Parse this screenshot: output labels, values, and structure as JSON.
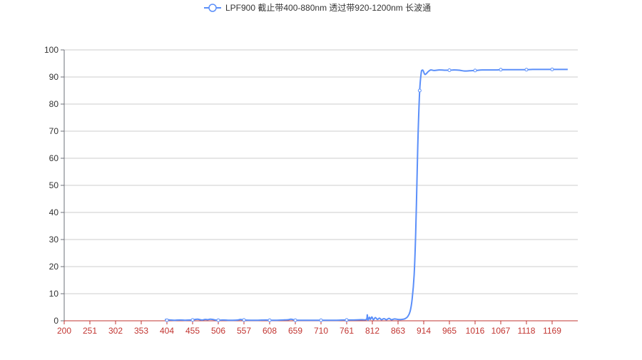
{
  "colors": {
    "series": "#5b8ff9",
    "series_alt": "#5793f3",
    "grid": "#cccccc",
    "x_axis": "#c23531",
    "y_tick_text": "#333333",
    "x_tick_text": "#c23531",
    "background": "#ffffff"
  },
  "chart_data": {
    "type": "line",
    "title": "",
    "legend": {
      "entries": [
        "LPF900 截止带400-880nm 透过带920-1200nm 长波通"
      ],
      "placement": "top-center",
      "marker": "circle-line"
    },
    "xlabel": "",
    "ylabel": "",
    "xlim": [
      200,
      1200
    ],
    "ylim": [
      0,
      100
    ],
    "x_ticks": [
      "200",
      "251",
      "302",
      "353",
      "404",
      "455",
      "506",
      "557",
      "608",
      "659",
      "710",
      "761",
      "812",
      "863",
      "914",
      "965",
      "1016",
      "1067",
      "1118",
      "1169"
    ],
    "y_ticks": [
      "0",
      "10",
      "20",
      "30",
      "40",
      "50",
      "60",
      "70",
      "80",
      "90",
      "100"
    ],
    "grid": "horizontal",
    "series": [
      {
        "name": "LPF900 截止带400-880nm 透过带920-1200nm 长波通",
        "smooth": true,
        "points": [
          [
            400,
            0.5
          ],
          [
            410,
            0.3
          ],
          [
            420,
            0.2
          ],
          [
            430,
            0.3
          ],
          [
            440,
            0.2
          ],
          [
            450,
            0.3
          ],
          [
            455,
            0.3
          ],
          [
            460,
            0.5
          ],
          [
            465,
            0.6
          ],
          [
            470,
            0.4
          ],
          [
            475,
            0.3
          ],
          [
            480,
            0.5
          ],
          [
            485,
            0.4
          ],
          [
            490,
            0.6
          ],
          [
            495,
            0.5
          ],
          [
            500,
            0.3
          ],
          [
            506,
            0.2
          ],
          [
            515,
            0.3
          ],
          [
            525,
            0.2
          ],
          [
            535,
            0.2
          ],
          [
            545,
            0.3
          ],
          [
            550,
            0.5
          ],
          [
            557,
            0.3
          ],
          [
            570,
            0.2
          ],
          [
            585,
            0.2
          ],
          [
            600,
            0.3
          ],
          [
            608,
            0.2
          ],
          [
            620,
            0.2
          ],
          [
            635,
            0.3
          ],
          [
            645,
            0.4
          ],
          [
            650,
            0.6
          ],
          [
            655,
            0.4
          ],
          [
            659,
            0.2
          ],
          [
            675,
            0.2
          ],
          [
            690,
            0.2
          ],
          [
            700,
            0.2
          ],
          [
            710,
            0.2
          ],
          [
            725,
            0.2
          ],
          [
            740,
            0.2
          ],
          [
            755,
            0.3
          ],
          [
            761,
            0.3
          ],
          [
            775,
            0.3
          ],
          [
            790,
            0.4
          ],
          [
            800,
            0.5
          ],
          [
            802,
            2.2
          ],
          [
            803,
            0.2
          ],
          [
            806,
            1.3
          ],
          [
            808,
            0.5
          ],
          [
            811,
            1.4
          ],
          [
            814,
            0.4
          ],
          [
            818,
            1.2
          ],
          [
            822,
            0.5
          ],
          [
            826,
            1.0
          ],
          [
            830,
            0.4
          ],
          [
            835,
            0.8
          ],
          [
            840,
            0.4
          ],
          [
            845,
            0.9
          ],
          [
            850,
            0.4
          ],
          [
            856,
            0.7
          ],
          [
            863,
            0.5
          ],
          [
            870,
            0.5
          ],
          [
            876,
            0.7
          ],
          [
            882,
            1.5
          ],
          [
            887,
            3.5
          ],
          [
            891,
            8.0
          ],
          [
            895,
            17.0
          ],
          [
            898,
            32.0
          ],
          [
            901,
            55.0
          ],
          [
            903,
            70.0
          ],
          [
            906,
            85.0
          ],
          [
            909,
            91.5
          ],
          [
            911,
            92.5
          ],
          [
            913,
            92.3
          ],
          [
            916,
            91.0
          ],
          [
            919,
            91.2
          ],
          [
            923,
            92.0
          ],
          [
            928,
            92.6
          ],
          [
            935,
            92.4
          ],
          [
            945,
            92.6
          ],
          [
            955,
            92.5
          ],
          [
            965,
            92.5
          ],
          [
            975,
            92.6
          ],
          [
            985,
            92.5
          ],
          [
            995,
            92.2
          ],
          [
            1005,
            92.3
          ],
          [
            1016,
            92.4
          ],
          [
            1030,
            92.6
          ],
          [
            1045,
            92.6
          ],
          [
            1060,
            92.6
          ],
          [
            1067,
            92.7
          ],
          [
            1080,
            92.7
          ],
          [
            1095,
            92.7
          ],
          [
            1110,
            92.7
          ],
          [
            1118,
            92.7
          ],
          [
            1130,
            92.8
          ],
          [
            1145,
            92.8
          ],
          [
            1160,
            92.8
          ],
          [
            1169,
            92.8
          ],
          [
            1180,
            92.8
          ],
          [
            1190,
            92.8
          ],
          [
            1200,
            92.8
          ]
        ],
        "marked_points": [
          [
            404,
            0.2
          ],
          [
            455,
            0.3
          ],
          [
            506,
            0.2
          ],
          [
            557,
            0.3
          ],
          [
            608,
            0.2
          ],
          [
            659,
            0.2
          ],
          [
            710,
            0.2
          ],
          [
            761,
            0.3
          ],
          [
            906,
            85.0
          ],
          [
            965,
            92.5
          ],
          [
            1016,
            92.4
          ],
          [
            1067,
            92.7
          ],
          [
            1118,
            92.7
          ],
          [
            1169,
            92.8
          ]
        ]
      }
    ]
  }
}
